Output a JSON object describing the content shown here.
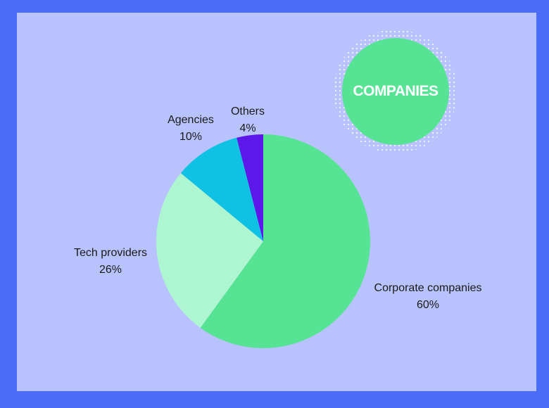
{
  "badge": {
    "text": "COMPANIES"
  },
  "colors": {
    "outer_border": "#4a6cf7",
    "panel": "#b8c3fd",
    "badge": "#56e393"
  },
  "chart_data": {
    "type": "pie",
    "start_angle_deg": 0,
    "direction": "clockwise",
    "slices": [
      {
        "label": "Corporate companies",
        "value": 60,
        "value_label": "60%",
        "color": "#56e393"
      },
      {
        "label": "Tech providers",
        "value": 26,
        "value_label": "26%",
        "color": "#aef6d1"
      },
      {
        "label": "Agencies",
        "value": 10,
        "value_label": "10%",
        "color": "#0fc1e3"
      },
      {
        "label": "Others",
        "value": 4,
        "value_label": "4%",
        "color": "#5b18e8"
      }
    ]
  }
}
